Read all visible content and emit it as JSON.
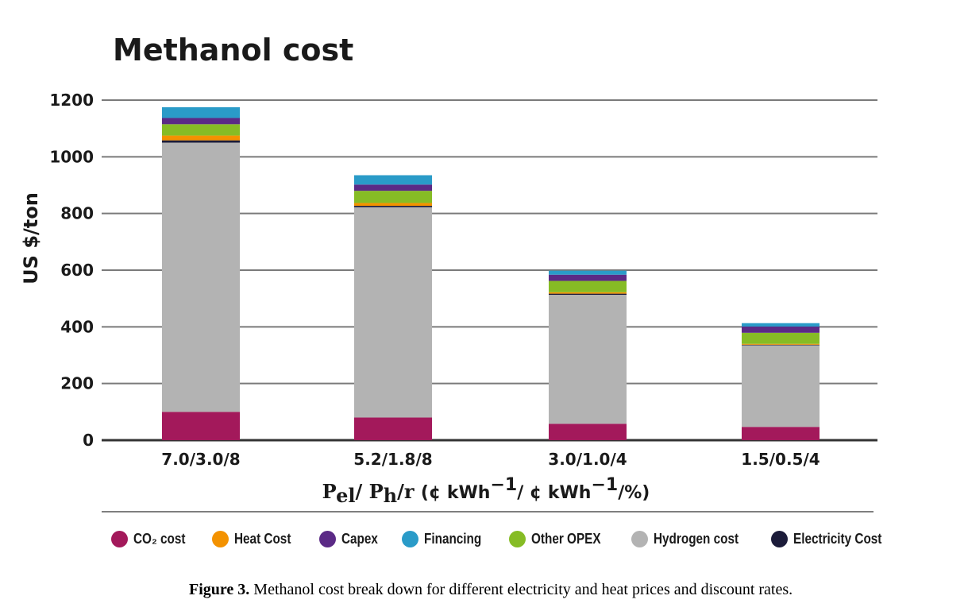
{
  "chart_data": {
    "type": "bar",
    "stacked": true,
    "title": "Methanol cost",
    "ylabel": "US $/ton",
    "xlabel_main": "Pel/ Ph/r",
    "xlabel_unit": "(¢ kWh−1/ ¢ kWh−1/%)",
    "ylim": [
      0,
      1200
    ],
    "yticks": [
      0,
      200,
      400,
      600,
      800,
      1000,
      1200
    ],
    "grid": true,
    "legend_position": "bottom",
    "categories": [
      "7.0/3.0/8",
      "5.2/1.8/8",
      "3.0/1.0/4",
      "1.5/0.5/4"
    ],
    "series": [
      {
        "name": "CO2 cost",
        "color": "#a3195b",
        "values": [
          100,
          80,
          58,
          47
        ]
      },
      {
        "name": "Hydrogen cost",
        "color": "#b3b3b3",
        "values": [
          950,
          742,
          455,
          288
        ]
      },
      {
        "name": "Electricity Cost",
        "color": "#1c1c3a",
        "values": [
          8,
          5,
          4,
          2
        ]
      },
      {
        "name": "Heat Cost",
        "color": "#f39200",
        "values": [
          17,
          10,
          5,
          3
        ]
      },
      {
        "name": "Other OPEX",
        "color": "#86bc25",
        "values": [
          40,
          43,
          40,
          39
        ]
      },
      {
        "name": "Capex",
        "color": "#5b2a86",
        "values": [
          22,
          22,
          22,
          22
        ]
      },
      {
        "name": "Financing",
        "color": "#2a9bc8",
        "values": [
          38,
          33,
          14,
          12
        ]
      }
    ],
    "legend": [
      {
        "label": "CO₂ cost",
        "color": "#a3195b"
      },
      {
        "label": "Heat Cost",
        "color": "#f39200"
      },
      {
        "label": "Capex",
        "color": "#5b2a86"
      },
      {
        "label": "Financing",
        "color": "#2a9bc8"
      },
      {
        "label": "Other OPEX",
        "color": "#86bc25"
      },
      {
        "label": "Hydrogen cost",
        "color": "#b3b3b3"
      },
      {
        "label": "Electricity Cost",
        "color": "#1c1c3a"
      }
    ]
  },
  "caption": {
    "label": "Figure 3.",
    "text": "Methanol cost break down for different electricity and heat prices and discount rates."
  }
}
